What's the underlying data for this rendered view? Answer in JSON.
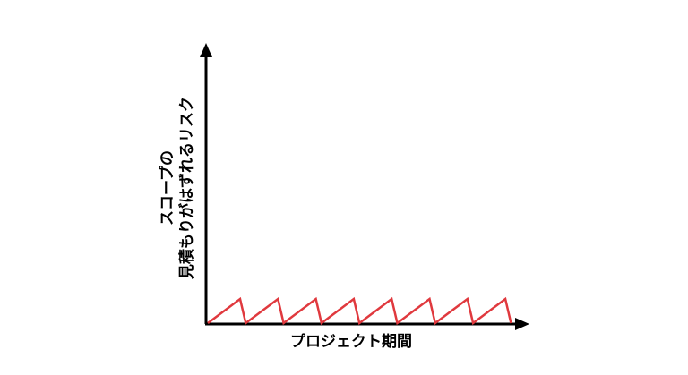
{
  "diagram": {
    "x_axis_label": "プロジェクト期間",
    "y_axis_label_line1": "スコープの",
    "y_axis_label_line2": "見積もりがはずれるリスク",
    "series_color": "#e0393e",
    "axis_color": "#000000",
    "sawtooth_cycles": 8
  }
}
